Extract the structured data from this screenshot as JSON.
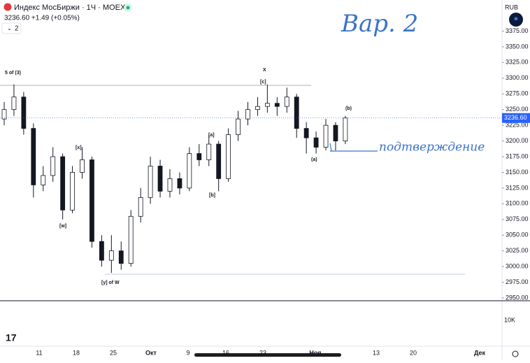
{
  "header": {
    "title": "Индекс МосБиржи · 1Ч · MOEX",
    "quote": "3236.60 +1.49 (+0.05%)",
    "indicator_count": 2
  },
  "chart_data": {
    "type": "candlestick",
    "currency": "RUB",
    "open": [
      3235,
      3250,
      3270,
      3220,
      3130,
      3145,
      3175,
      3090,
      3150,
      3170,
      3040,
      3010,
      3025,
      3005,
      3080,
      3110,
      3160,
      3120,
      3140,
      3125,
      3180,
      3170,
      3195,
      3140,
      3210,
      3235,
      3250,
      3255,
      3260,
      3255,
      3270,
      3220,
      3205,
      3190,
      3225,
      3200
    ],
    "high": [
      3262,
      3290,
      3278,
      3228,
      3160,
      3190,
      3180,
      3160,
      3190,
      3175,
      3050,
      3050,
      3040,
      3090,
      3125,
      3175,
      3170,
      3155,
      3150,
      3190,
      3195,
      3210,
      3200,
      3220,
      3248,
      3262,
      3270,
      3290,
      3270,
      3285,
      3275,
      3230,
      3215,
      3235,
      3230,
      3240
    ],
    "low": [
      3225,
      3240,
      3210,
      3110,
      3120,
      3135,
      3075,
      3085,
      3140,
      3030,
      3000,
      2990,
      2995,
      3000,
      3070,
      3100,
      3110,
      3110,
      3115,
      3120,
      3160,
      3160,
      3120,
      3135,
      3200,
      3225,
      3240,
      3245,
      3240,
      3245,
      3205,
      3180,
      3180,
      3185,
      3185,
      3195
    ],
    "close": [
      3250,
      3270,
      3220,
      3130,
      3145,
      3175,
      3090,
      3150,
      3170,
      3040,
      3010,
      3025,
      3005,
      3080,
      3110,
      3160,
      3120,
      3140,
      3125,
      3180,
      3170,
      3195,
      3140,
      3210,
      3235,
      3250,
      3255,
      3260,
      3255,
      3270,
      3220,
      3205,
      3190,
      3225,
      3200,
      3236.6
    ],
    "ylim": [
      2950,
      3400
    ],
    "yticks": [
      {
        "value": 2950,
        "label": "2950.00"
      },
      {
        "value": 2975,
        "label": "2975.00"
      },
      {
        "value": 3000,
        "label": "3000.00"
      },
      {
        "value": 3025,
        "label": "3025.00"
      },
      {
        "value": 3050,
        "label": "3050.00"
      },
      {
        "value": 3075,
        "label": "3075.00"
      },
      {
        "value": 3100,
        "label": "3100.00"
      },
      {
        "value": 3125,
        "label": "3125.00"
      },
      {
        "value": 3150,
        "label": "3150.00"
      },
      {
        "value": 3175,
        "label": "3175.00"
      },
      {
        "value": 3200,
        "label": "3200.00"
      },
      {
        "value": 3225,
        "label": "3225.00"
      },
      {
        "value": 3250,
        "label": "3250.00"
      },
      {
        "value": 3275,
        "label": "3275.00"
      },
      {
        "value": 3300,
        "label": "3300.00"
      },
      {
        "value": 3325,
        "label": "3325.00"
      },
      {
        "value": 3350,
        "label": "3350.00"
      },
      {
        "value": 3375,
        "label": "3375.00"
      }
    ],
    "last_price": {
      "value": 3236.6,
      "label": "3236.60"
    },
    "x_labels": [
      "11",
      "18",
      "25",
      "Окт",
      "9",
      "16",
      "23",
      "Ноя",
      "13",
      "20",
      "Дек"
    ],
    "volume_axis_label": "10K",
    "annotations": [
      "5 of (3)",
      "X",
      "[c]",
      "(b)",
      "[a]",
      "[x]",
      "(a)",
      "[b]",
      "[w]",
      "[y] of W"
    ],
    "handwritten": [
      "Вар. 2",
      "подтверждение"
    ]
  }
}
